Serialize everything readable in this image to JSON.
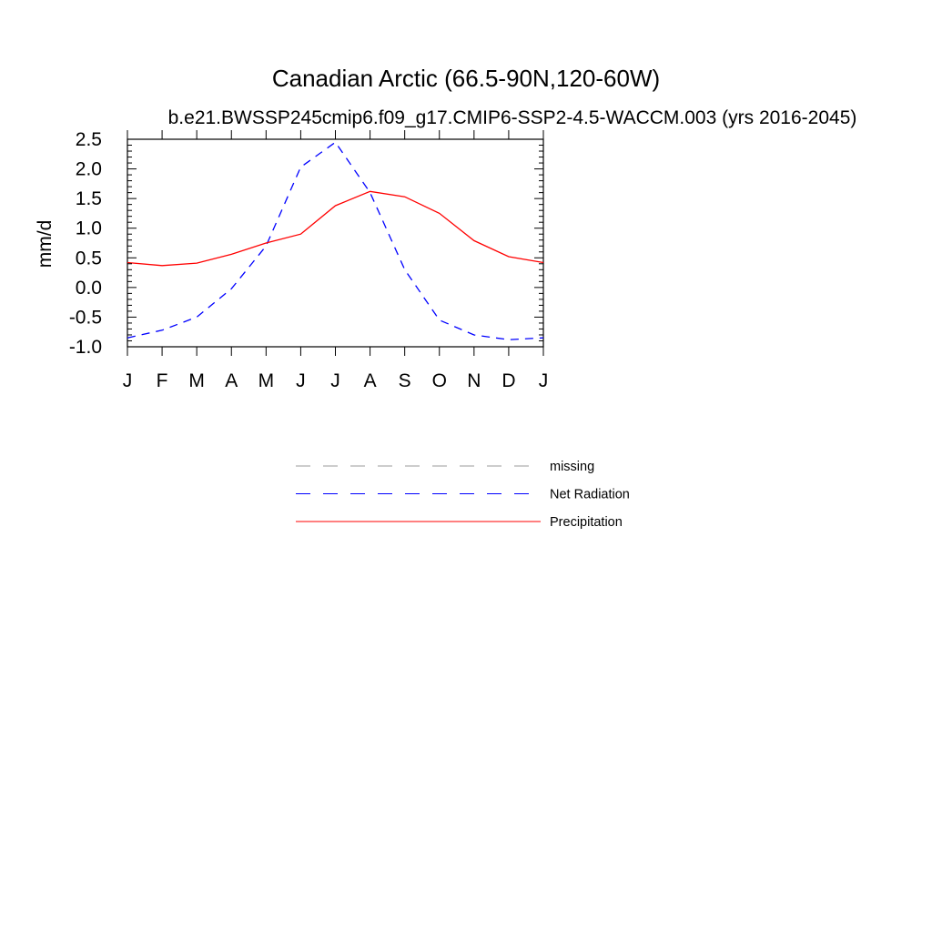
{
  "chart_data": {
    "type": "line",
    "title": "Canadian Arctic (66.5-90N,120-60W)",
    "subtitle": "b.e21.BWSSP245cmip6.f09_g17.CMIP6-SSP2-4.5-WACCM.003 (yrs 2016-2045)",
    "ylabel": "mm/d",
    "xlabel": "",
    "categories": [
      "J",
      "F",
      "M",
      "A",
      "M",
      "J",
      "J",
      "A",
      "S",
      "O",
      "N",
      "D",
      "J"
    ],
    "ylim": [
      -1.0,
      2.5
    ],
    "yticks": [
      "2.5",
      "2.0",
      "1.5",
      "1.0",
      "0.5",
      "0.0",
      "-0.5",
      "-1.0"
    ],
    "series": [
      {
        "name": "Net Radiation",
        "color": "#0000ff",
        "dash": "dashed",
        "values": [
          -0.85,
          -0.72,
          -0.5,
          -0.02,
          0.7,
          2.03,
          2.45,
          1.6,
          0.3,
          -0.55,
          -0.8,
          -0.88,
          -0.85
        ]
      },
      {
        "name": "Precipitation",
        "color": "#ff0000",
        "dash": "solid",
        "values": [
          0.42,
          0.37,
          0.41,
          0.56,
          0.75,
          0.9,
          1.38,
          1.62,
          1.53,
          1.25,
          0.79,
          0.52,
          0.42
        ]
      }
    ],
    "legend": {
      "placement": "below",
      "entries": [
        {
          "label": "missing",
          "color": "#999999",
          "dash": "dashed"
        },
        {
          "label": "Net Radiation",
          "color": "#0000ff",
          "dash": "dashed"
        },
        {
          "label": "Precipitation",
          "color": "#ff0000",
          "dash": "solid"
        }
      ]
    },
    "grid": false
  }
}
